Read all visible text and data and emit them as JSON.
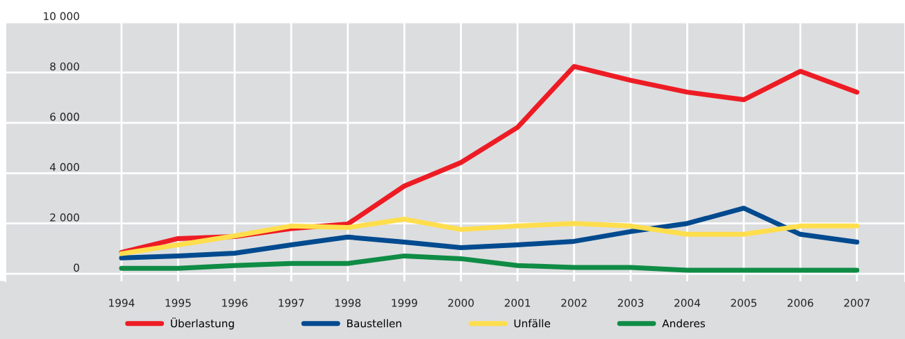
{
  "chart_data": {
    "type": "line",
    "x": [
      1994,
      1995,
      1996,
      1997,
      1998,
      1999,
      2000,
      2001,
      2002,
      2003,
      2004,
      2005,
      2006,
      2007
    ],
    "series": [
      {
        "name": "Überlastung",
        "color": "#ed1c24",
        "values": [
          850,
          1400,
          1480,
          1800,
          1980,
          3490,
          4420,
          5820,
          8240,
          7690,
          7220,
          6920,
          8050,
          7220
        ]
      },
      {
        "name": "Baustellen",
        "color": "#004a8f",
        "values": [
          630,
          710,
          820,
          1150,
          1460,
          1260,
          1040,
          1150,
          1290,
          1680,
          2000,
          2610,
          1570,
          1260
        ]
      },
      {
        "name": "Unfälle",
        "color": "#ffde4d",
        "values": [
          800,
          1150,
          1510,
          1900,
          1840,
          2170,
          1760,
          1900,
          2000,
          1900,
          1570,
          1570,
          1900,
          1900
        ]
      },
      {
        "name": "Anderes",
        "color": "#0f8c45",
        "values": [
          220,
          220,
          330,
          410,
          410,
          710,
          600,
          330,
          250,
          250,
          140,
          140,
          140,
          140
        ]
      }
    ],
    "xlim": [
      1991.95,
      2007.85
    ],
    "xticks": [
      1994,
      1995,
      1996,
      1997,
      1998,
      1999,
      2000,
      2001,
      2002,
      2003,
      2004,
      2005,
      2006,
      2007
    ],
    "ylim": [
      -300,
      10000
    ],
    "yticks": [
      {
        "value": 0,
        "label": "0"
      },
      {
        "value": 2000,
        "label": "2 000"
      },
      {
        "value": 4000,
        "label": "4 000"
      },
      {
        "value": 6000,
        "label": "6 000"
      },
      {
        "value": 8000,
        "label": "8 000"
      },
      {
        "value": 10000,
        "label": "10 000"
      }
    ],
    "grid": true,
    "legend": "bottom",
    "marker": "none",
    "line_style": "solid"
  }
}
